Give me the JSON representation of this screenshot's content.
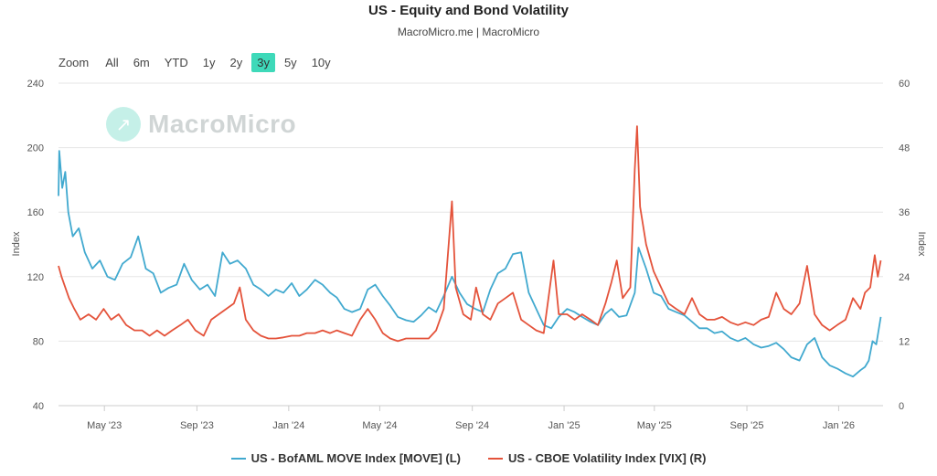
{
  "title": "US - Equity and Bond Volatility",
  "subtitle": "MacroMicro.me | MacroMicro",
  "watermark": "MacroMicro",
  "zoom": {
    "label": "Zoom",
    "options": [
      "All",
      "6m",
      "YTD",
      "1y",
      "2y",
      "3y",
      "5y",
      "10y"
    ],
    "active": "3y"
  },
  "colors": {
    "move": "#41a9cf",
    "vix": "#e4533b",
    "grid": "#e6e6e6",
    "accent": "#3ed9b9"
  },
  "chart_data": {
    "type": "line",
    "x_type": "date",
    "x_range": [
      "2023-03-01",
      "2026-03-01"
    ],
    "x_ticks": [
      {
        "date": "2023-05-01",
        "label": "May '23"
      },
      {
        "date": "2023-09-01",
        "label": "Sep '23"
      },
      {
        "date": "2024-01-01",
        "label": "Jan '24"
      },
      {
        "date": "2024-05-01",
        "label": "May '24"
      },
      {
        "date": "2024-09-01",
        "label": "Sep '24"
      },
      {
        "date": "2025-01-01",
        "label": "Jan '25"
      },
      {
        "date": "2025-05-01",
        "label": "May '25"
      },
      {
        "date": "2025-09-01",
        "label": "Sep '25"
      },
      {
        "date": "2026-01-01",
        "label": "Jan '26"
      }
    ],
    "y_left": {
      "label": "Index",
      "range": [
        40,
        240
      ],
      "ticks": [
        40,
        80,
        120,
        160,
        200,
        240
      ]
    },
    "y_right": {
      "label": "Index",
      "range": [
        0,
        60
      ],
      "ticks": [
        0,
        12,
        24,
        36,
        48,
        60
      ]
    },
    "series": [
      {
        "name": "US - BofAML MOVE Index [MOVE] (L)",
        "axis": "left",
        "points": [
          [
            "2023-03-01",
            170
          ],
          [
            "2023-03-02",
            198
          ],
          [
            "2023-03-06",
            175
          ],
          [
            "2023-03-10",
            185
          ],
          [
            "2023-03-14",
            160
          ],
          [
            "2023-03-20",
            145
          ],
          [
            "2023-03-28",
            150
          ],
          [
            "2023-04-05",
            135
          ],
          [
            "2023-04-15",
            125
          ],
          [
            "2023-04-25",
            130
          ],
          [
            "2023-05-05",
            120
          ],
          [
            "2023-05-15",
            118
          ],
          [
            "2023-05-25",
            128
          ],
          [
            "2023-06-05",
            132
          ],
          [
            "2023-06-15",
            145
          ],
          [
            "2023-06-25",
            125
          ],
          [
            "2023-07-05",
            122
          ],
          [
            "2023-07-15",
            110
          ],
          [
            "2023-07-25",
            113
          ],
          [
            "2023-08-05",
            115
          ],
          [
            "2023-08-15",
            128
          ],
          [
            "2023-08-25",
            118
          ],
          [
            "2023-09-05",
            112
          ],
          [
            "2023-09-15",
            115
          ],
          [
            "2023-09-25",
            108
          ],
          [
            "2023-10-05",
            135
          ],
          [
            "2023-10-15",
            128
          ],
          [
            "2023-10-25",
            130
          ],
          [
            "2023-11-05",
            125
          ],
          [
            "2023-11-15",
            115
          ],
          [
            "2023-11-25",
            112
          ],
          [
            "2023-12-05",
            108
          ],
          [
            "2023-12-15",
            112
          ],
          [
            "2023-12-25",
            110
          ],
          [
            "2024-01-05",
            116
          ],
          [
            "2024-01-15",
            108
          ],
          [
            "2024-01-25",
            112
          ],
          [
            "2024-02-05",
            118
          ],
          [
            "2024-02-15",
            115
          ],
          [
            "2024-02-25",
            110
          ],
          [
            "2024-03-05",
            107
          ],
          [
            "2024-03-15",
            100
          ],
          [
            "2024-03-25",
            98
          ],
          [
            "2024-04-05",
            100
          ],
          [
            "2024-04-15",
            112
          ],
          [
            "2024-04-25",
            115
          ],
          [
            "2024-05-05",
            108
          ],
          [
            "2024-05-15",
            102
          ],
          [
            "2024-05-25",
            95
          ],
          [
            "2024-06-05",
            93
          ],
          [
            "2024-06-15",
            92
          ],
          [
            "2024-06-25",
            96
          ],
          [
            "2024-07-05",
            101
          ],
          [
            "2024-07-15",
            98
          ],
          [
            "2024-07-25",
            108
          ],
          [
            "2024-08-05",
            120
          ],
          [
            "2024-08-15",
            110
          ],
          [
            "2024-08-25",
            103
          ],
          [
            "2024-09-05",
            100
          ],
          [
            "2024-09-15",
            98
          ],
          [
            "2024-09-25",
            112
          ],
          [
            "2024-10-05",
            122
          ],
          [
            "2024-10-15",
            125
          ],
          [
            "2024-10-25",
            134
          ],
          [
            "2024-11-05",
            135
          ],
          [
            "2024-11-15",
            110
          ],
          [
            "2024-11-25",
            100
          ],
          [
            "2024-12-05",
            90
          ],
          [
            "2024-12-15",
            88
          ],
          [
            "2024-12-25",
            95
          ],
          [
            "2025-01-05",
            100
          ],
          [
            "2025-01-15",
            98
          ],
          [
            "2025-01-25",
            95
          ],
          [
            "2025-02-05",
            92
          ],
          [
            "2025-02-15",
            90
          ],
          [
            "2025-02-25",
            97
          ],
          [
            "2025-03-05",
            100
          ],
          [
            "2025-03-15",
            95
          ],
          [
            "2025-03-25",
            96
          ],
          [
            "2025-04-05",
            110
          ],
          [
            "2025-04-10",
            138
          ],
          [
            "2025-04-20",
            125
          ],
          [
            "2025-04-30",
            110
          ],
          [
            "2025-05-10",
            108
          ],
          [
            "2025-05-20",
            100
          ],
          [
            "2025-05-30",
            98
          ],
          [
            "2025-06-10",
            96
          ],
          [
            "2025-06-20",
            92
          ],
          [
            "2025-06-30",
            88
          ],
          [
            "2025-07-10",
            88
          ],
          [
            "2025-07-20",
            85
          ],
          [
            "2025-07-30",
            86
          ],
          [
            "2025-08-10",
            82
          ],
          [
            "2025-08-20",
            80
          ],
          [
            "2025-08-30",
            82
          ],
          [
            "2025-09-10",
            78
          ],
          [
            "2025-09-20",
            76
          ],
          [
            "2025-09-30",
            77
          ],
          [
            "2025-10-10",
            79
          ],
          [
            "2025-10-20",
            75
          ],
          [
            "2025-10-30",
            70
          ],
          [
            "2025-11-10",
            68
          ],
          [
            "2025-11-20",
            78
          ],
          [
            "2025-11-30",
            82
          ],
          [
            "2025-12-10",
            70
          ],
          [
            "2025-12-20",
            65
          ],
          [
            "2025-12-30",
            63
          ],
          [
            "2026-01-10",
            60
          ],
          [
            "2026-01-20",
            58
          ],
          [
            "2026-01-30",
            62
          ],
          [
            "2026-02-05",
            64
          ],
          [
            "2026-02-10",
            68
          ],
          [
            "2026-02-15",
            80
          ],
          [
            "2026-02-20",
            78
          ],
          [
            "2026-02-26",
            95
          ]
        ]
      },
      {
        "name": "US - CBOE Volatility Index [VIX] (R)",
        "axis": "right",
        "points": [
          [
            "2023-03-01",
            26
          ],
          [
            "2023-03-05",
            24
          ],
          [
            "2023-03-10",
            22
          ],
          [
            "2023-03-15",
            20
          ],
          [
            "2023-03-22",
            18
          ],
          [
            "2023-03-30",
            16
          ],
          [
            "2023-04-10",
            17
          ],
          [
            "2023-04-20",
            16
          ],
          [
            "2023-04-30",
            18
          ],
          [
            "2023-05-10",
            16
          ],
          [
            "2023-05-20",
            17
          ],
          [
            "2023-05-30",
            15
          ],
          [
            "2023-06-10",
            14
          ],
          [
            "2023-06-20",
            14
          ],
          [
            "2023-06-30",
            13
          ],
          [
            "2023-07-10",
            14
          ],
          [
            "2023-07-20",
            13
          ],
          [
            "2023-07-30",
            14
          ],
          [
            "2023-08-10",
            15
          ],
          [
            "2023-08-20",
            16
          ],
          [
            "2023-08-30",
            14
          ],
          [
            "2023-09-10",
            13
          ],
          [
            "2023-09-20",
            16
          ],
          [
            "2023-09-30",
            17
          ],
          [
            "2023-10-10",
            18
          ],
          [
            "2023-10-20",
            19
          ],
          [
            "2023-10-28",
            22
          ],
          [
            "2023-11-05",
            16
          ],
          [
            "2023-11-15",
            14
          ],
          [
            "2023-11-25",
            13
          ],
          [
            "2023-12-05",
            12.5
          ],
          [
            "2023-12-15",
            12.5
          ],
          [
            "2023-12-25",
            12.7
          ],
          [
            "2024-01-05",
            13
          ],
          [
            "2024-01-15",
            13
          ],
          [
            "2024-01-25",
            13.5
          ],
          [
            "2024-02-05",
            13.5
          ],
          [
            "2024-02-15",
            14
          ],
          [
            "2024-02-25",
            13.5
          ],
          [
            "2024-03-05",
            14
          ],
          [
            "2024-03-15",
            13.5
          ],
          [
            "2024-03-25",
            13
          ],
          [
            "2024-04-05",
            16
          ],
          [
            "2024-04-15",
            18
          ],
          [
            "2024-04-25",
            16
          ],
          [
            "2024-05-05",
            13.5
          ],
          [
            "2024-05-15",
            12.5
          ],
          [
            "2024-05-25",
            12
          ],
          [
            "2024-06-05",
            12.5
          ],
          [
            "2024-06-15",
            12.5
          ],
          [
            "2024-06-25",
            12.5
          ],
          [
            "2024-07-05",
            12.5
          ],
          [
            "2024-07-15",
            14
          ],
          [
            "2024-07-25",
            18
          ],
          [
            "2024-08-05",
            38
          ],
          [
            "2024-08-10",
            22
          ],
          [
            "2024-08-20",
            17
          ],
          [
            "2024-08-30",
            16
          ],
          [
            "2024-09-06",
            22
          ],
          [
            "2024-09-15",
            17
          ],
          [
            "2024-09-25",
            16
          ],
          [
            "2024-10-05",
            19
          ],
          [
            "2024-10-15",
            20
          ],
          [
            "2024-10-25",
            21
          ],
          [
            "2024-11-05",
            16
          ],
          [
            "2024-11-15",
            15
          ],
          [
            "2024-11-25",
            14
          ],
          [
            "2024-12-05",
            13.5
          ],
          [
            "2024-12-18",
            27
          ],
          [
            "2024-12-25",
            17
          ],
          [
            "2025-01-05",
            17
          ],
          [
            "2025-01-15",
            16
          ],
          [
            "2025-01-25",
            17
          ],
          [
            "2025-02-05",
            16
          ],
          [
            "2025-02-15",
            15
          ],
          [
            "2025-02-25",
            19
          ],
          [
            "2025-03-05",
            23
          ],
          [
            "2025-03-12",
            27
          ],
          [
            "2025-03-20",
            20
          ],
          [
            "2025-03-30",
            22
          ],
          [
            "2025-04-05",
            44
          ],
          [
            "2025-04-08",
            52
          ],
          [
            "2025-04-12",
            37
          ],
          [
            "2025-04-20",
            30
          ],
          [
            "2025-04-30",
            25
          ],
          [
            "2025-05-10",
            22
          ],
          [
            "2025-05-20",
            19
          ],
          [
            "2025-05-30",
            18
          ],
          [
            "2025-06-10",
            17
          ],
          [
            "2025-06-20",
            20
          ],
          [
            "2025-06-30",
            17
          ],
          [
            "2025-07-10",
            16
          ],
          [
            "2025-07-20",
            16
          ],
          [
            "2025-07-30",
            16.5
          ],
          [
            "2025-08-10",
            15.5
          ],
          [
            "2025-08-20",
            15
          ],
          [
            "2025-08-30",
            15.5
          ],
          [
            "2025-09-10",
            15
          ],
          [
            "2025-09-20",
            16
          ],
          [
            "2025-09-30",
            16.5
          ],
          [
            "2025-10-10",
            21
          ],
          [
            "2025-10-20",
            18
          ],
          [
            "2025-10-30",
            17
          ],
          [
            "2025-11-10",
            19
          ],
          [
            "2025-11-20",
            26
          ],
          [
            "2025-11-30",
            17
          ],
          [
            "2025-12-10",
            15
          ],
          [
            "2025-12-20",
            14
          ],
          [
            "2025-12-30",
            15
          ],
          [
            "2026-01-10",
            16
          ],
          [
            "2026-01-20",
            20
          ],
          [
            "2026-01-30",
            18
          ],
          [
            "2026-02-05",
            21
          ],
          [
            "2026-02-12",
            22
          ],
          [
            "2026-02-18",
            28
          ],
          [
            "2026-02-22",
            24
          ],
          [
            "2026-02-26",
            27
          ]
        ]
      }
    ]
  }
}
